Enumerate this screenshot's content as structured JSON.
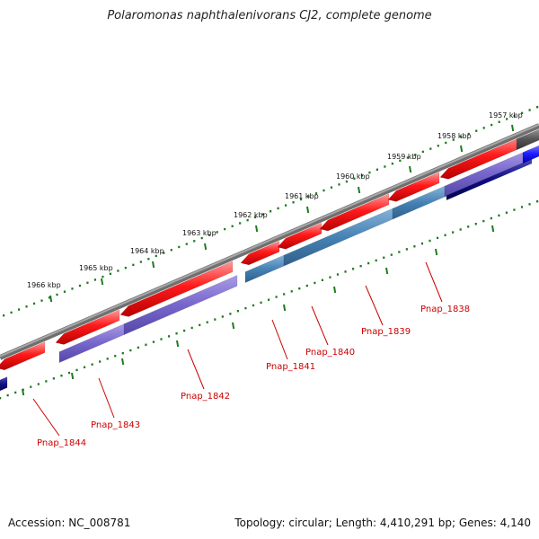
{
  "title": "Polaromonas naphthalenivorans CJ2, complete genome",
  "footer": {
    "accession": "Accession: NC_008781",
    "summary": "Topology: circular; Length: 4,410,291 bp; Genes: 4,140"
  },
  "ruler": {
    "labels": [
      "1957 kbp",
      "1958 kbp",
      "1959 kbp",
      "1960 kbp",
      "1961 kbp",
      "1962 kbp",
      "1963 kbp",
      "1964 kbp",
      "1965 kbp",
      "1966 kbp"
    ]
  },
  "gene_labels": [
    "Pnap_1838",
    "Pnap_1839",
    "Pnap_1840",
    "Pnap_1841",
    "Pnap_1842",
    "Pnap_1843",
    "Pnap_1844"
  ],
  "colors": {
    "background": "#ffffff",
    "backbone": "#808080",
    "gene_cds": "#ff1a1a",
    "feature_purple": "#7766cc",
    "feature_steelblue": "#4682b4",
    "feature_navy": "#0d0d80",
    "feature_blue": "#1a1aff",
    "feature_darkgray": "#555555",
    "ticks": "#1f7a1f",
    "label_text": "#cc0000"
  }
}
